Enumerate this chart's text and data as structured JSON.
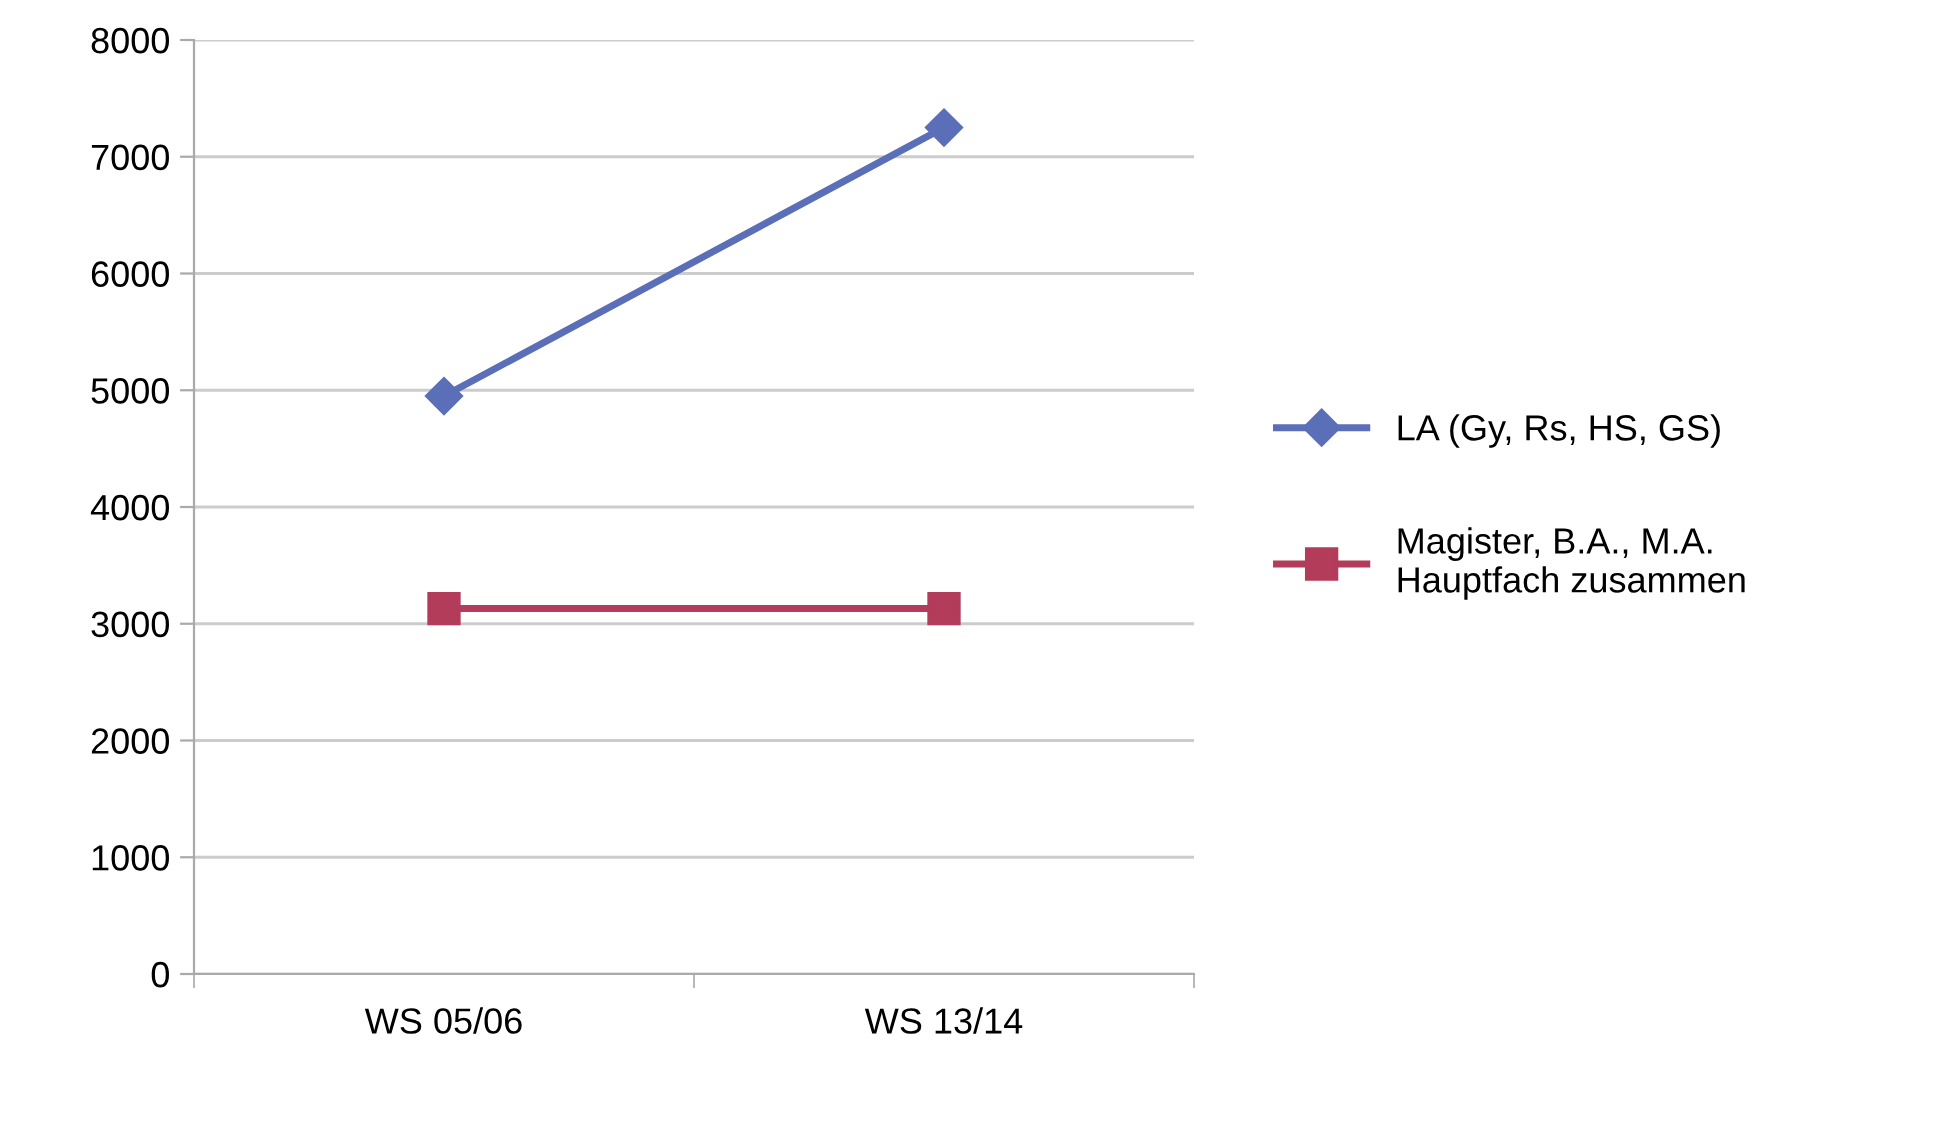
{
  "chart_data": {
    "type": "line",
    "categories": [
      "WS 05/06",
      "WS 13/14"
    ],
    "series": [
      {
        "name": "LA (Gy, Rs, HS, GS)",
        "color": "#5a6fb8",
        "marker": "diamond",
        "values": [
          4950,
          7250
        ]
      },
      {
        "name": "Magister, B.A., M.A.\nHauptfach zusammen",
        "color": "#b23c5a",
        "marker": "square",
        "values": [
          3130,
          3130
        ]
      }
    ],
    "ylim": [
      0,
      8000
    ],
    "yticks": [
      0,
      1000,
      2000,
      3000,
      4000,
      5000,
      6000,
      7000,
      8000
    ],
    "grid": "y",
    "legend": "right"
  }
}
